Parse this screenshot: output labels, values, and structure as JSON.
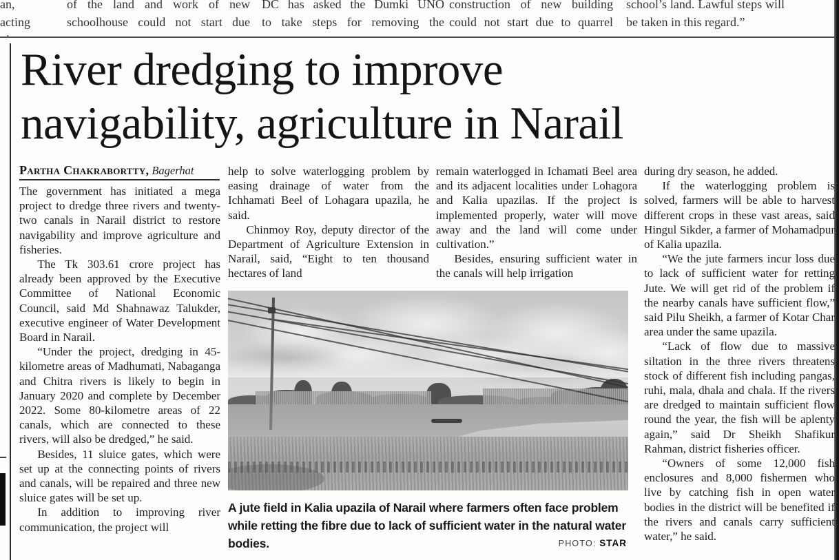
{
  "colors": {
    "paper": "#fdfdfc",
    "ink": "#1d1d1d",
    "rule": "#2b2b2b",
    "photo_sky": "#d1d1d1",
    "photo_field": "#a4a4a4"
  },
  "top_strip": {
    "fragments": [
      {
        "line1": "an, acting",
        "line2": "ol."
      },
      {
        "line1": "of the land and work of new",
        "line2": "schoolhouse could not start due"
      },
      {
        "line1": "DC has asked the Dumki UNO",
        "line2": "to take steps for removing the"
      },
      {
        "line1": "construction of new building",
        "line2": "could not start due to quarrel"
      },
      {
        "line1": "school’s land. Lawful steps will",
        "line2": "be taken in this regard.”"
      }
    ]
  },
  "article": {
    "headline_lines": [
      "River dredging to improve",
      "navigability, agriculture in Narail"
    ],
    "byline": {
      "author": "Partha Chakrabortty,",
      "location": "Bagerhat"
    },
    "columns": [
      {
        "paragraphs": [
          "The government has initiated a mega project to dredge three rivers and twenty-two canals in Narail district to restore navigability and improve agriculture and fisheries.",
          "The Tk 303.61 crore project has already been approved by the Executive Committee of National Economic Council, said Md Shahnawaz Talukder, executive engineer of Water Development Board in Narail.",
          "“Under the project, dredging in 45-kilometre areas of Madhumati, Nabaganga and Chitra rivers is likely to begin in January 2020 and complete by December 2022. Some 80-kilometre areas of 22 canals, which are connected to these rivers, will also be dredged,” he said.",
          "Besides, 11 sluice gates, which were set up at the connecting points of rivers and canals, will be repaired and three new sluice gates will be set up.",
          "In addition to improving river communication, the project will"
        ]
      },
      {
        "paragraphs": [
          "help to solve waterlogging problem by easing drainage of water from the Ichhamati Beel of Lohagara upazila, he said.",
          "Chinmoy Roy, deputy director of the Department of Agriculture Extension in Narail, said, “Eight to ten thousand hectares of land"
        ]
      },
      {
        "paragraphs": [
          "remain waterlogged in Ichamati Beel area and its adjacent localities under Lohagora and Kalia upazilas. If the project is implemented properly, water will move away and the land will come under cultivation.”",
          "Besides, ensuring sufficient water in the canals will help irrigation"
        ]
      },
      {
        "paragraphs": [
          "during dry season, he added.",
          "If the waterlogging problem is solved, farmers will be able to harvest different crops in these vast areas, said Hingul Sikder, a farmer of Mohamadpur of Kalia upazila.",
          "“We the jute farmers incur loss due to lack of sufficient water for retting Jute. We will get rid of the problem if the nearby canals have sufficient flow,” said Pilu Sheikh, a farmer of Kotar Char area under the same upazila.",
          "“Lack of flow due to massive siltation in the three rivers threatens stock of different fish including pangas, ruhi, mala, dhala and chala. If the rivers are dredged to maintain sufficient flow round the year, the fish will be aplenty again,” said Dr Sheikh Shafikur Rahman, district fisheries officer.",
          "“Owners of some 12,000 fish enclosures and 8,000 fishermen who live by catching fish in open water bodies in the district will be benefited if the rivers and canals carry sufficient water,” he said."
        ]
      }
    ]
  },
  "photo": {
    "caption": "A jute field in Kalia upazila of Narail where farmers often face problem while retting the fibre due to lack of sufficient water in the natural water bodies.",
    "credit_label": "PHOTO:",
    "credit_value": "STAR"
  }
}
